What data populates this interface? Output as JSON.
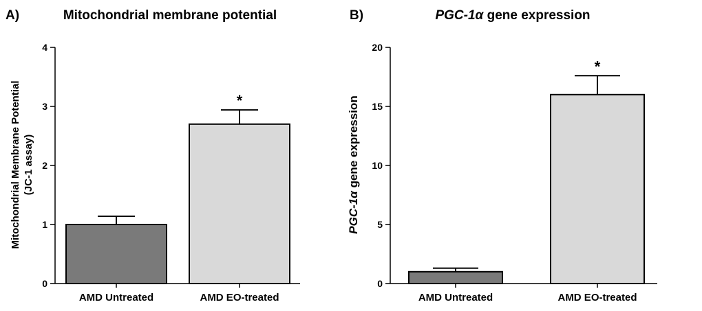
{
  "chart_data": [
    {
      "type": "bar",
      "panel_label": "A)",
      "title": "Mitochondrial membrane potential",
      "ylabel_line1": "Mitochondrial Membrane Potential",
      "ylabel_line2": "(JC-1 assay)",
      "xlabel": "",
      "categories": [
        "AMD Untreated",
        "AMD EO-treated"
      ],
      "values": [
        1.0,
        2.7
      ],
      "errors": [
        0.14,
        0.24
      ],
      "significance": [
        "",
        "*"
      ],
      "bar_colors": [
        "#7a7a7a",
        "#d9d9d9"
      ],
      "ylim": [
        0,
        4
      ],
      "yticks": [
        0,
        1,
        2,
        3,
        4
      ],
      "ytick_labels": [
        "0",
        "1",
        "2",
        "3",
        "4"
      ]
    },
    {
      "type": "bar",
      "panel_label": "B)",
      "title_italic": "PGC-1α",
      "title_rest": " gene expression",
      "ylabel_italic": "PGC-1α",
      "ylabel_rest": " gene expression",
      "xlabel": "",
      "categories": [
        "AMD Untreated",
        "AMD EO-treated"
      ],
      "values": [
        1.0,
        16.0
      ],
      "errors": [
        0.3,
        1.6
      ],
      "significance": [
        "",
        "*"
      ],
      "bar_colors": [
        "#7a7a7a",
        "#d9d9d9"
      ],
      "ylim": [
        0,
        20
      ],
      "yticks": [
        0,
        5,
        10,
        15,
        20
      ],
      "ytick_labels": [
        "0",
        "5",
        "10",
        "15",
        "20"
      ]
    }
  ]
}
